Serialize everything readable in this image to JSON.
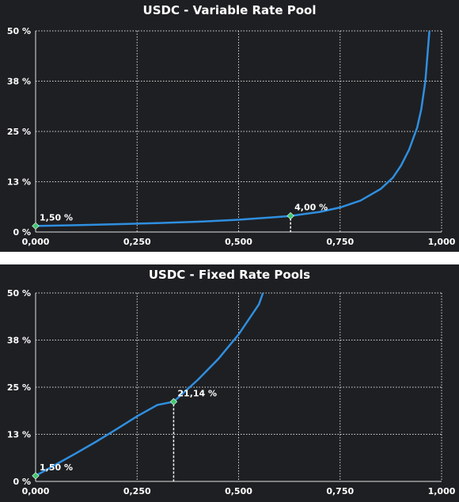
{
  "chart_data": [
    {
      "type": "line",
      "title": "USDC - Variable Rate Pool",
      "xlim": [
        0,
        1
      ],
      "ylim": [
        0,
        50
      ],
      "x_ticks": [
        "0,000",
        "0,250",
        "0,500",
        "0,750",
        "1,000"
      ],
      "y_ticks": [
        "0 %",
        "13 %",
        "25 %",
        "38 %",
        "50 %"
      ],
      "grid": true,
      "series": [
        {
          "x": [
            0,
            0.1,
            0.2,
            0.3,
            0.4,
            0.5,
            0.6,
            0.628,
            0.7,
            0.75,
            0.8,
            0.85,
            0.88,
            0.9,
            0.92,
            0.94,
            0.95,
            0.96,
            0.97
          ],
          "values": [
            1.5,
            1.7,
            1.95,
            2.2,
            2.55,
            3.05,
            3.75,
            4.0,
            5.0,
            6.1,
            7.8,
            10.7,
            13.5,
            16.5,
            20.5,
            26.0,
            30.5,
            37.5,
            50.0
          ]
        }
      ],
      "points": [
        {
          "x": 0,
          "y": 1.5,
          "label": "1,50 %"
        },
        {
          "x": 0.628,
          "y": 4.0,
          "label": "4,00 %"
        }
      ]
    },
    {
      "type": "line",
      "title": "USDC - Fixed Rate Pools",
      "xlim": [
        0,
        1
      ],
      "ylim": [
        0,
        50
      ],
      "x_ticks": [
        "0,000",
        "0,250",
        "0,500",
        "0,750",
        "1,000"
      ],
      "y_ticks": [
        "0 %",
        "13 %",
        "25 %",
        "38 %",
        "50 %"
      ],
      "grid": true,
      "series": [
        {
          "x": [
            0,
            0.05,
            0.1,
            0.15,
            0.2,
            0.25,
            0.3,
            0.34,
            0.4,
            0.45,
            0.5,
            0.55,
            0.56
          ],
          "values": [
            1.5,
            4.5,
            7.5,
            10.6,
            13.9,
            17.3,
            20.3,
            21.14,
            27.0,
            32.5,
            39.0,
            47.0,
            50.0
          ]
        }
      ],
      "points": [
        {
          "x": 0,
          "y": 1.5,
          "label": "1,50 %"
        },
        {
          "x": 0.34,
          "y": 21.14,
          "label": "21,14 %"
        }
      ]
    }
  ]
}
